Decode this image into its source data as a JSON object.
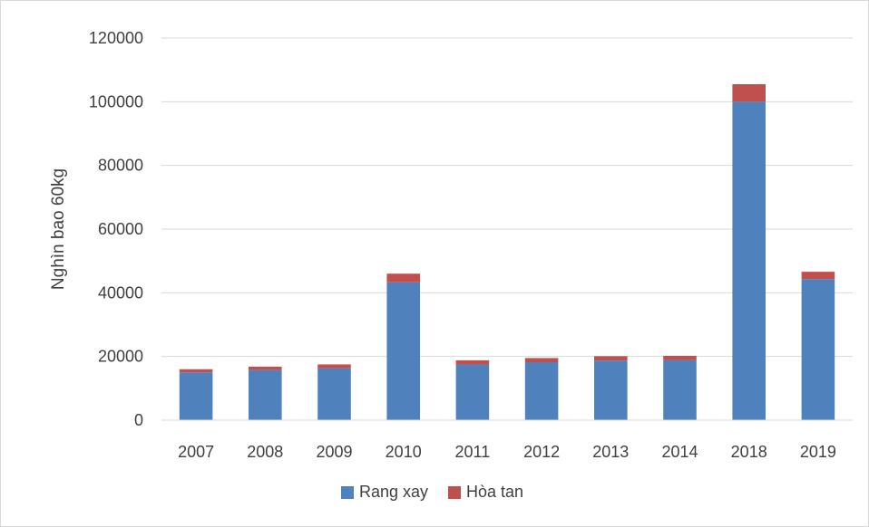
{
  "chart_data": {
    "type": "bar",
    "stacked": true,
    "title": "",
    "xlabel": "",
    "ylabel": "Nghìn bao 60kg",
    "categories": [
      "2007",
      "2008",
      "2009",
      "2010",
      "2011",
      "2012",
      "2013",
      "2014",
      "2018",
      "2019"
    ],
    "series": [
      {
        "name": "Rang xay",
        "color": "#4f81bd",
        "values": [
          15000,
          15700,
          16300,
          43300,
          17500,
          18200,
          18700,
          18800,
          100000,
          44300
        ]
      },
      {
        "name": "Hòa tan",
        "color": "#c0504d",
        "values": [
          1000,
          1100,
          1200,
          2700,
          1300,
          1300,
          1400,
          1400,
          5500,
          2300
        ]
      }
    ],
    "ylim": [
      0,
      120000
    ],
    "yticks": [
      "0",
      "20000",
      "40000",
      "60000",
      "80000",
      "100000",
      "120000"
    ],
    "grid": true,
    "legend_position": "bottom"
  }
}
